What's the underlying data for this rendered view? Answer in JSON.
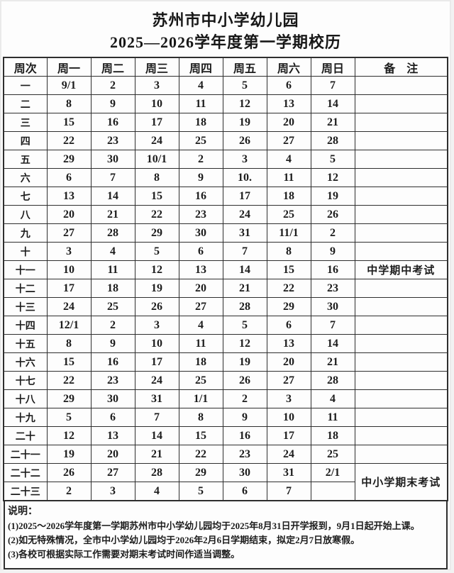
{
  "title": {
    "line1": "苏州市中小学幼儿园",
    "line2": "2025—2026学年度第一学期校历"
  },
  "table": {
    "headers": [
      "周次",
      "周一",
      "周二",
      "周三",
      "周四",
      "周五",
      "周六",
      "周日",
      "备　注"
    ],
    "rows": [
      {
        "week": "一",
        "days": [
          "9/1",
          "2",
          "3",
          "4",
          "5",
          "6",
          "7"
        ],
        "remark": ""
      },
      {
        "week": "二",
        "days": [
          "8",
          "9",
          "10",
          "11",
          "12",
          "13",
          "14"
        ],
        "remark": ""
      },
      {
        "week": "三",
        "days": [
          "15",
          "16",
          "17",
          "18",
          "19",
          "20",
          "21"
        ],
        "remark": ""
      },
      {
        "week": "四",
        "days": [
          "22",
          "23",
          "24",
          "25",
          "26",
          "27",
          "28"
        ],
        "remark": ""
      },
      {
        "week": "五",
        "days": [
          "29",
          "30",
          "10/1",
          "2",
          "3",
          "4",
          "5"
        ],
        "remark": ""
      },
      {
        "week": "六",
        "days": [
          "6",
          "7",
          "8",
          "9",
          "10.",
          "11",
          "12"
        ],
        "remark": ""
      },
      {
        "week": "七",
        "days": [
          "13",
          "14",
          "15",
          "16",
          "17",
          "18",
          "19"
        ],
        "remark": ""
      },
      {
        "week": "八",
        "days": [
          "20",
          "21",
          "22",
          "23",
          "24",
          "25",
          "26"
        ],
        "remark": ""
      },
      {
        "week": "九",
        "days": [
          "27",
          "28",
          "29",
          "30",
          "31",
          "11/1",
          "2"
        ],
        "remark": ""
      },
      {
        "week": "十",
        "days": [
          "3",
          "4",
          "5",
          "6",
          "7",
          "8",
          "9"
        ],
        "remark": ""
      },
      {
        "week": "十一",
        "days": [
          "10",
          "11",
          "12",
          "13",
          "14",
          "15",
          "16"
        ],
        "remark": "中学期中考试"
      },
      {
        "week": "十二",
        "days": [
          "17",
          "18",
          "19",
          "20",
          "21",
          "22",
          "23"
        ],
        "remark": ""
      },
      {
        "week": "十三",
        "days": [
          "24",
          "25",
          "26",
          "27",
          "28",
          "29",
          "30"
        ],
        "remark": ""
      },
      {
        "week": "十四",
        "days": [
          "12/1",
          "2",
          "3",
          "4",
          "5",
          "6",
          "7"
        ],
        "remark": ""
      },
      {
        "week": "十五",
        "days": [
          "8",
          "9",
          "10",
          "11",
          "12",
          "13",
          "14"
        ],
        "remark": ""
      },
      {
        "week": "十六",
        "days": [
          "15",
          "16",
          "17",
          "18",
          "19",
          "20",
          "21"
        ],
        "remark": ""
      },
      {
        "week": "十七",
        "days": [
          "22",
          "23",
          "24",
          "25",
          "26",
          "27",
          "28"
        ],
        "remark": ""
      },
      {
        "week": "十八",
        "days": [
          "29",
          "30",
          "31",
          "1/1",
          "2",
          "3",
          "4"
        ],
        "remark": ""
      },
      {
        "week": "十九",
        "days": [
          "5",
          "6",
          "7",
          "8",
          "9",
          "10",
          "11"
        ],
        "remark": ""
      },
      {
        "week": "二十",
        "days": [
          "12",
          "13",
          "14",
          "15",
          "16",
          "17",
          "18"
        ],
        "remark": ""
      },
      {
        "week": "二十一",
        "days": [
          "19",
          "20",
          "21",
          "22",
          "23",
          "24",
          "25"
        ],
        "remark": ""
      },
      {
        "week": "二十二",
        "days": [
          "26",
          "27",
          "28",
          "29",
          "30",
          "31",
          "2/1"
        ],
        "remark": "中小学期末考试",
        "remark_span": 2
      },
      {
        "week": "二十三",
        "days": [
          "2",
          "3",
          "4",
          "5",
          "6",
          "7",
          ""
        ],
        "remark": "",
        "remark_span": 0
      }
    ]
  },
  "notes": {
    "label": "说明：",
    "items": [
      "(1)2025～2026学年度第一学期苏州市中小学幼儿园均于2025年8月31日开学报到，9月1日起开始上课。",
      "(2)如无特殊情况，全市中小学幼儿园均于2026年2月6日学期结束，拟定2月7日放寒假。",
      "(3)各校可根据实际工作需要对期末考试时间作适当调整。"
    ]
  }
}
